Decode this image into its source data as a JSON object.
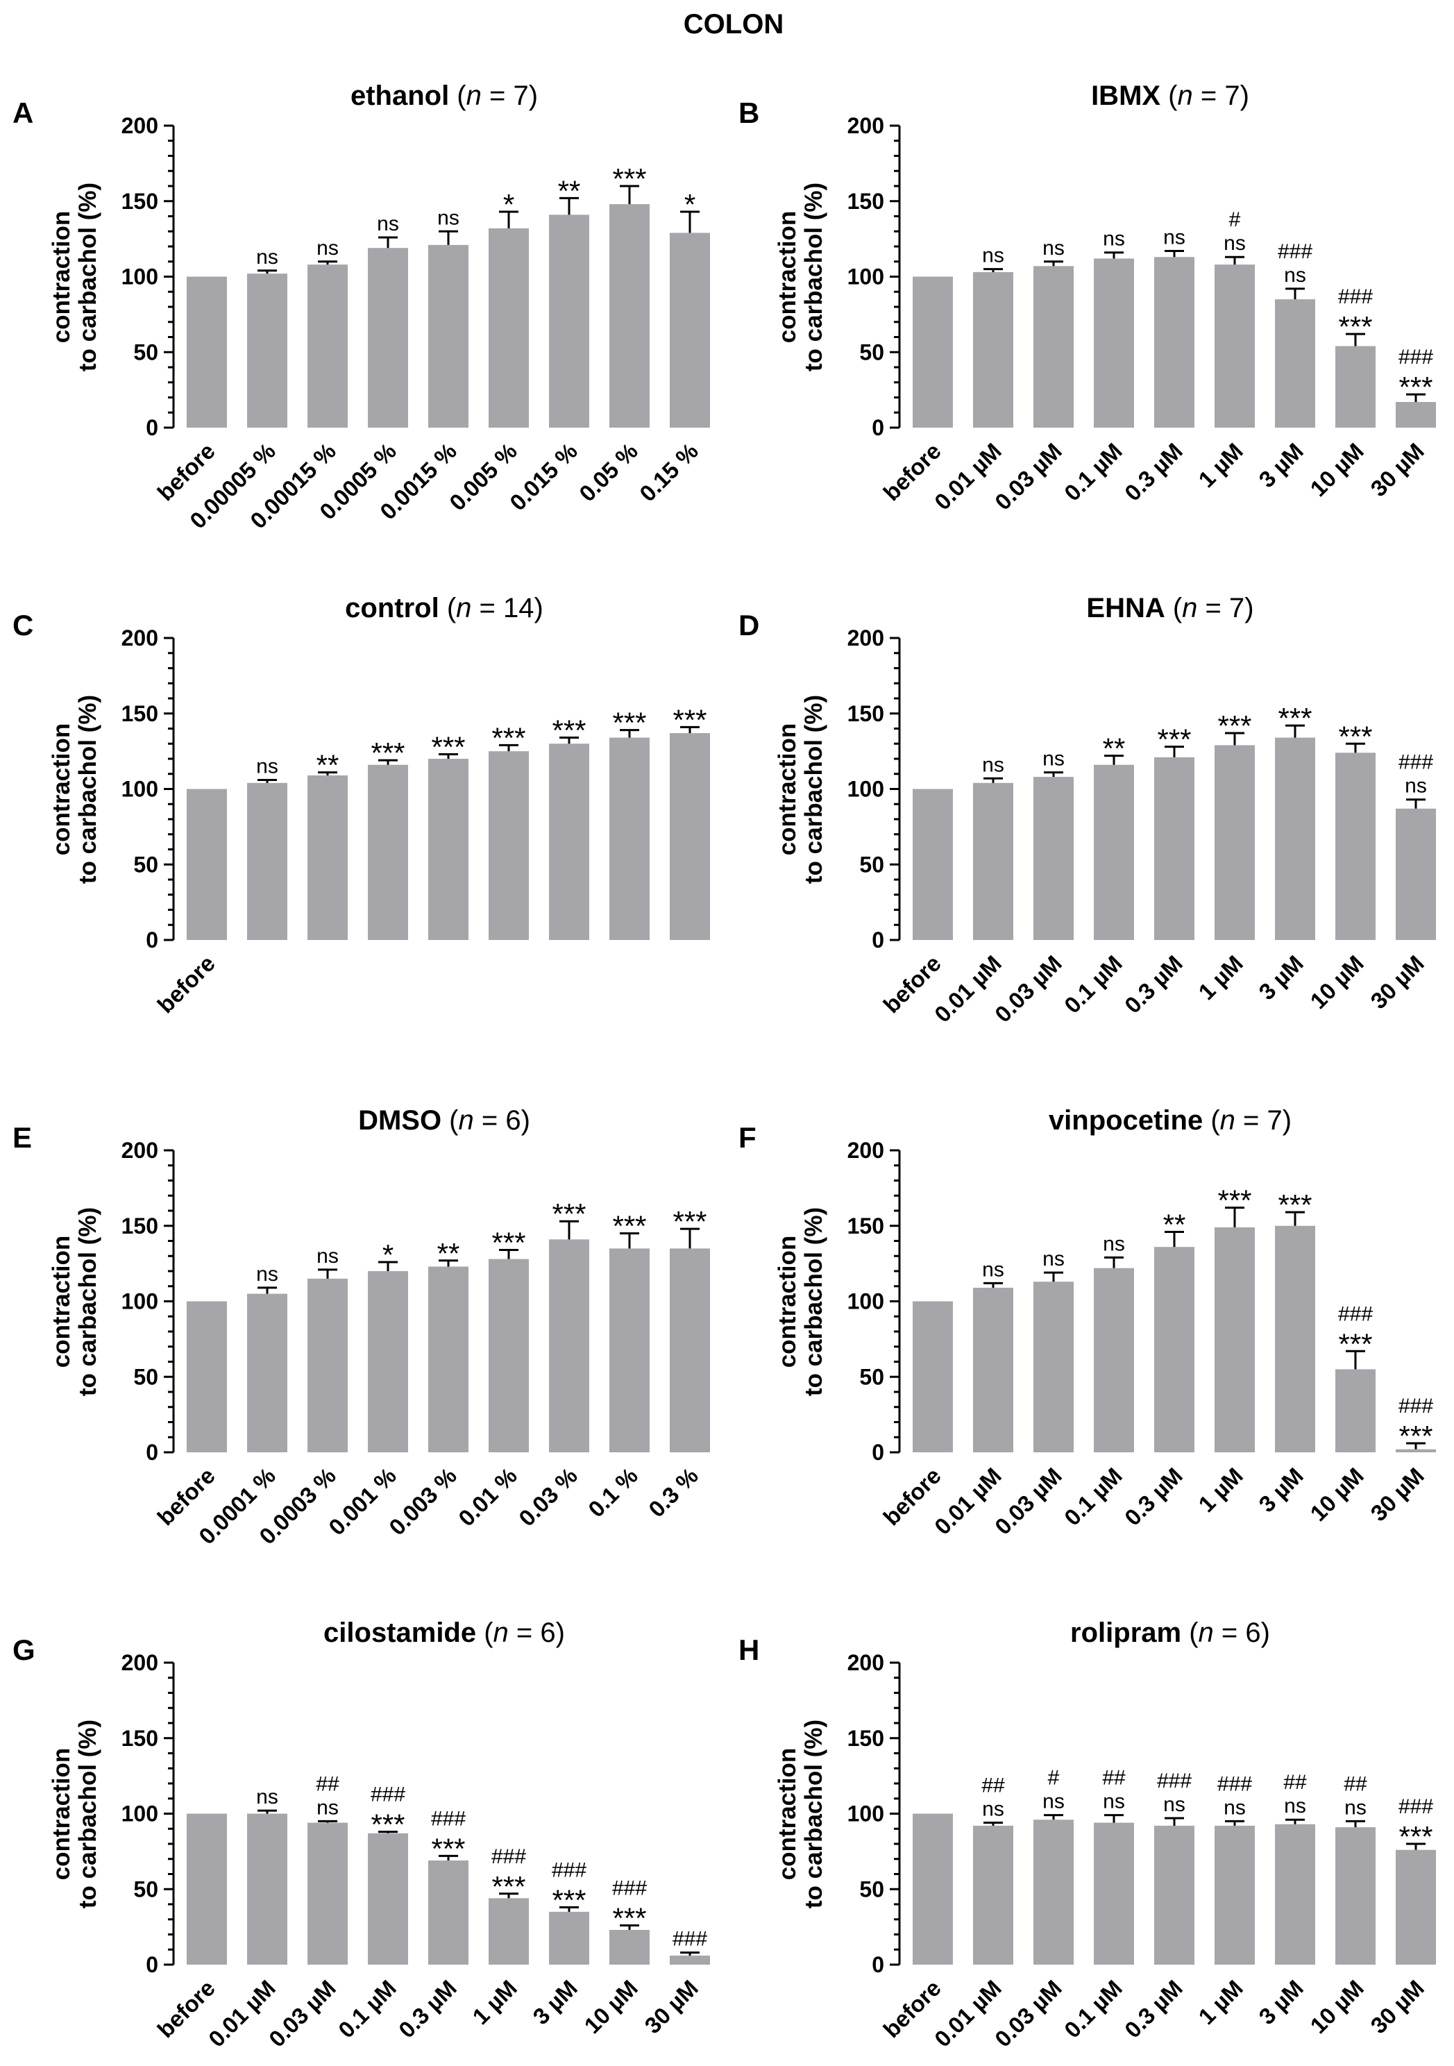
{
  "figure_title": "COLON",
  "chart_data": [
    {
      "panel": "A",
      "drug": "ethanol",
      "n_label": "n",
      "n_value": "7",
      "type": "bar",
      "categories": [
        "before",
        "0.00005 %",
        "0.00015 %",
        "0.0005 %",
        "0.0015 %",
        "0.005 %",
        "0.015 %",
        "0.05 %",
        "0.15 %"
      ],
      "values": [
        100,
        102,
        108,
        119,
        121,
        132,
        141,
        148,
        129
      ],
      "errors": [
        0,
        2,
        2,
        7,
        9,
        11,
        11,
        12,
        14
      ],
      "significance": [
        [],
        [
          "ns"
        ],
        [
          "ns"
        ],
        [
          "ns"
        ],
        [
          "ns"
        ],
        [
          "*"
        ],
        [
          "**"
        ],
        [
          "***"
        ],
        [
          "*"
        ]
      ],
      "ylabel": [
        "contraction",
        "to carbachol (%)"
      ],
      "yticks": [
        0,
        50,
        100,
        150,
        200
      ],
      "ylim": [
        0,
        200
      ]
    },
    {
      "panel": "B",
      "drug": "IBMX",
      "n_label": "n",
      "n_value": "7",
      "type": "bar",
      "categories": [
        "before",
        "0.01 µM",
        "0.03 µM",
        "0.1 µM",
        "0.3 µM",
        "1 µM",
        "3 µM",
        "10 µM",
        "30 µM"
      ],
      "values": [
        100,
        103,
        107,
        112,
        113,
        108,
        85,
        54,
        17
      ],
      "errors": [
        0,
        2,
        3,
        4,
        4,
        5,
        7,
        8,
        5
      ],
      "significance": [
        [],
        [
          "ns"
        ],
        [
          "ns"
        ],
        [
          "ns"
        ],
        [
          "ns"
        ],
        [
          "#",
          "ns"
        ],
        [
          "###",
          "ns"
        ],
        [
          "###",
          "***"
        ],
        [
          "###",
          "***"
        ]
      ],
      "ylabel": [
        "contraction",
        "to carbachol (%)"
      ],
      "yticks": [
        0,
        50,
        100,
        150,
        200
      ],
      "ylim": [
        0,
        200
      ]
    },
    {
      "panel": "C",
      "drug": "control",
      "n_label": "n",
      "n_value": "14",
      "type": "bar",
      "categories": [
        "before",
        "",
        "",
        "",
        "",
        "",
        "",
        "",
        ""
      ],
      "values": [
        100,
        104,
        109,
        116,
        120,
        125,
        130,
        134,
        137
      ],
      "errors": [
        0,
        2,
        2,
        3,
        3,
        4,
        4,
        5,
        4
      ],
      "significance": [
        [],
        [
          "ns"
        ],
        [
          "**"
        ],
        [
          "***"
        ],
        [
          "***"
        ],
        [
          "***"
        ],
        [
          "***"
        ],
        [
          "***"
        ],
        [
          "***"
        ]
      ],
      "ylabel": [
        "contraction",
        "to carbachol (%)"
      ],
      "yticks": [
        0,
        50,
        100,
        150,
        200
      ],
      "ylim": [
        0,
        200
      ]
    },
    {
      "panel": "D",
      "drug": "EHNA",
      "n_label": "n",
      "n_value": "7",
      "type": "bar",
      "categories": [
        "before",
        "0.01 µM",
        "0.03 µM",
        "0.1 µM",
        "0.3 µM",
        "1 µM",
        "3 µM",
        "10 µM",
        "30 µM"
      ],
      "values": [
        100,
        104,
        108,
        116,
        121,
        129,
        134,
        124,
        87
      ],
      "errors": [
        0,
        3,
        3,
        6,
        7,
        8,
        8,
        6,
        6
      ],
      "significance": [
        [],
        [
          "ns"
        ],
        [
          "ns"
        ],
        [
          "**"
        ],
        [
          "***"
        ],
        [
          "***"
        ],
        [
          "***"
        ],
        [
          "***"
        ],
        [
          "###",
          "ns"
        ]
      ],
      "ylabel": [
        "contraction",
        "to carbachol (%)"
      ],
      "yticks": [
        0,
        50,
        100,
        150,
        200
      ],
      "ylim": [
        0,
        200
      ]
    },
    {
      "panel": "E",
      "drug": "DMSO",
      "n_label": "n",
      "n_value": "6",
      "type": "bar",
      "categories": [
        "before",
        "0.0001 %",
        "0.0003 %",
        "0.001 %",
        "0.003 %",
        "0.01 %",
        "0.03 %",
        "0.1 %",
        "0.3 %"
      ],
      "values": [
        100,
        105,
        115,
        120,
        123,
        128,
        141,
        135,
        135
      ],
      "errors": [
        0,
        4,
        6,
        6,
        4,
        6,
        12,
        10,
        13
      ],
      "significance": [
        [],
        [
          "ns"
        ],
        [
          "ns"
        ],
        [
          "*"
        ],
        [
          "**"
        ],
        [
          "***"
        ],
        [
          "***"
        ],
        [
          "***"
        ],
        [
          "***"
        ]
      ],
      "ylabel": [
        "contraction",
        "to carbachol (%)"
      ],
      "yticks": [
        0,
        50,
        100,
        150,
        200
      ],
      "ylim": [
        0,
        200
      ]
    },
    {
      "panel": "F",
      "drug": "vinpocetine",
      "n_label": "n",
      "n_value": "7",
      "type": "bar",
      "categories": [
        "before",
        "0.01 µM",
        "0.03 µM",
        "0.1 µM",
        "0.3 µM",
        "1 µM",
        "3 µM",
        "10 µM",
        "30 µM"
      ],
      "values": [
        100,
        109,
        113,
        122,
        136,
        149,
        150,
        55,
        2
      ],
      "errors": [
        0,
        3,
        6,
        7,
        10,
        13,
        9,
        12,
        4
      ],
      "significance": [
        [],
        [
          "ns"
        ],
        [
          "ns"
        ],
        [
          "ns"
        ],
        [
          "**"
        ],
        [
          "***"
        ],
        [
          "***"
        ],
        [
          "###",
          "***"
        ],
        [
          "###",
          "***"
        ]
      ],
      "ylabel": [
        "contraction",
        "to carbachol (%)"
      ],
      "yticks": [
        0,
        50,
        100,
        150,
        200
      ],
      "ylim": [
        0,
        200
      ]
    },
    {
      "panel": "G",
      "drug": "cilostamide",
      "n_label": "n",
      "n_value": "6",
      "type": "bar",
      "categories": [
        "before",
        "0.01 µM",
        "0.03 µM",
        "0.1 µM",
        "0.3 µM",
        "1 µM",
        "3 µM",
        "10 µM",
        "30 µM"
      ],
      "values": [
        100,
        100,
        94,
        87,
        69,
        44,
        35,
        23,
        6
      ],
      "errors": [
        0,
        2,
        1,
        1,
        3,
        3,
        3,
        3,
        2
      ],
      "significance": [
        [],
        [
          "ns"
        ],
        [
          "##",
          "ns"
        ],
        [
          "###",
          "***"
        ],
        [
          "###",
          "***"
        ],
        [
          "###",
          "***"
        ],
        [
          "###",
          "***"
        ],
        [
          "###",
          "***"
        ],
        [
          "###"
        ]
      ],
      "ylabel": [
        "contraction",
        "to carbachol (%)"
      ],
      "yticks": [
        0,
        50,
        100,
        150,
        200
      ],
      "ylim": [
        0,
        200
      ]
    },
    {
      "panel": "H",
      "drug": "rolipram",
      "n_label": "n",
      "n_value": "6",
      "type": "bar",
      "categories": [
        "before",
        "0.01 µM",
        "0.03 µM",
        "0.1 µM",
        "0.3 µM",
        "1 µM",
        "3 µM",
        "10 µM",
        "30 µM"
      ],
      "values": [
        100,
        92,
        96,
        94,
        92,
        92,
        93,
        91,
        76
      ],
      "errors": [
        0,
        2,
        3,
        5,
        5,
        3,
        3,
        4,
        4
      ],
      "significance": [
        [],
        [
          "##",
          "ns"
        ],
        [
          "#",
          "ns"
        ],
        [
          "##",
          "ns"
        ],
        [
          "###",
          "ns"
        ],
        [
          "###",
          "ns"
        ],
        [
          "##",
          "ns"
        ],
        [
          "##",
          "ns"
        ],
        [
          "###",
          "***"
        ]
      ],
      "ylabel": [
        "contraction",
        "to carbachol (%)"
      ],
      "yticks": [
        0,
        50,
        100,
        150,
        200
      ],
      "ylim": [
        0,
        200
      ]
    }
  ]
}
